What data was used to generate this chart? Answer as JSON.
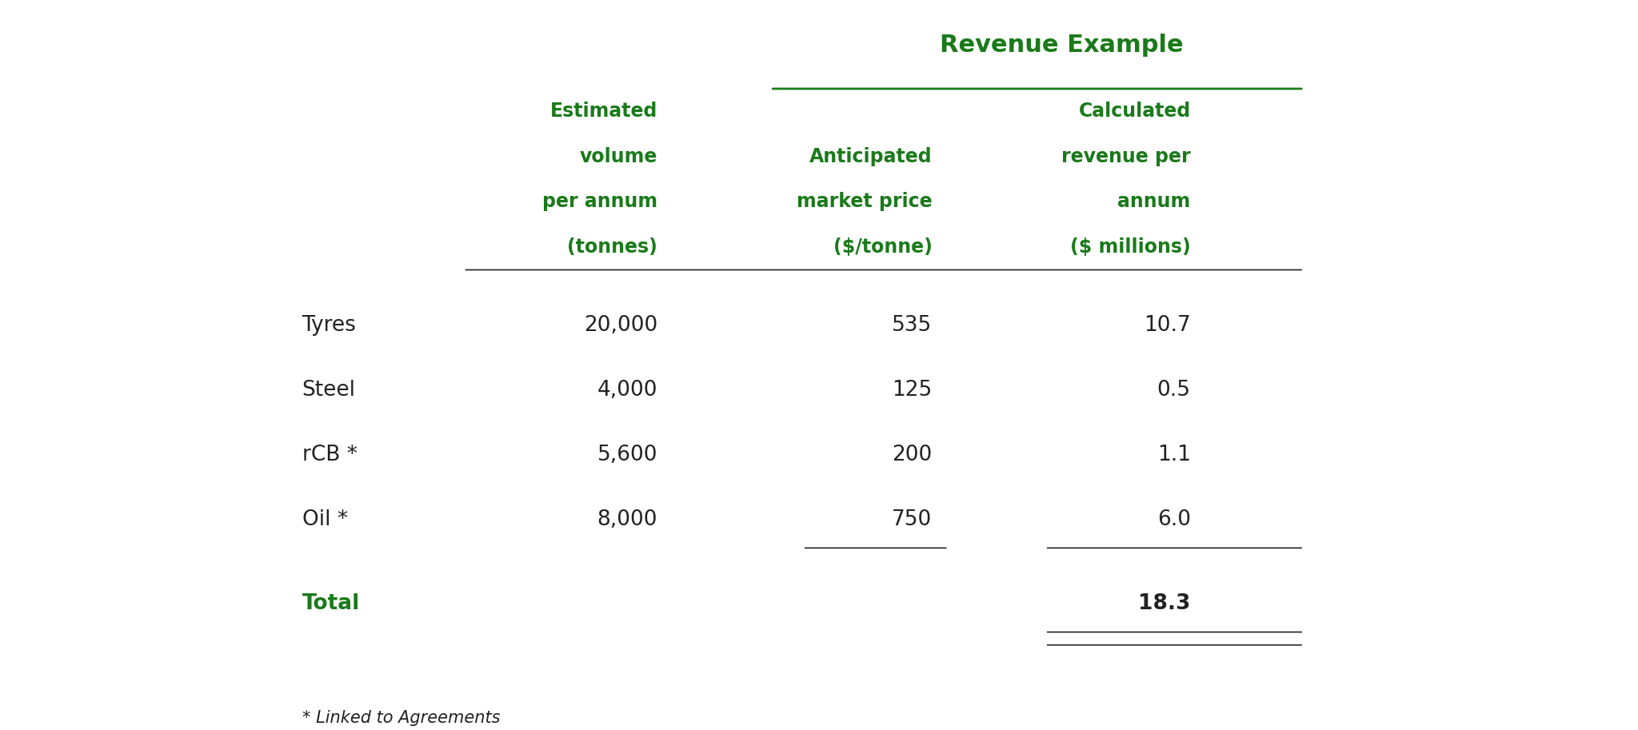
{
  "title": "Revenue Example",
  "title_color": "#1a7a1a",
  "header_color": "#1a7a1a",
  "text_color": "#222222",
  "green_color": "#1a7a1a",
  "bg_color": "#ffffff",
  "col_headers": [
    [
      "Estimated",
      "volume",
      "per annum",
      "(tonnes)"
    ],
    [
      "Anticipated",
      "market price",
      "($/tonne)"
    ],
    [
      "Calculated",
      "revenue per",
      "annum",
      "($ millions)"
    ]
  ],
  "rows": [
    {
      "label": "Tyres",
      "vol": "20,000",
      "price": "535",
      "rev": "10.7"
    },
    {
      "label": "Steel",
      "vol": "4,000",
      "price": "125",
      "rev": "0.5"
    },
    {
      "label": "rCB *",
      "vol": "5,600",
      "price": "200",
      "rev": "1.1"
    },
    {
      "label": "Oil *",
      "vol": "8,000",
      "price": "750",
      "rev": "6.0"
    }
  ],
  "total_label": "Total",
  "total_value": "18.3",
  "footnote": "* Linked to Agreements",
  "figsize": [
    20.48,
    9.13
  ],
  "dpi": 100
}
